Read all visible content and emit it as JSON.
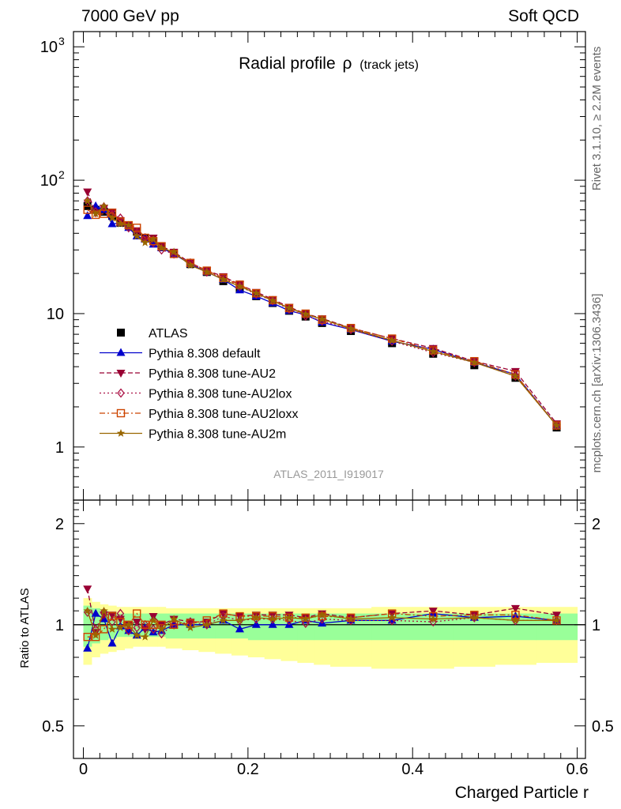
{
  "header": {
    "left": "7000 GeV pp",
    "right": "Soft QCD"
  },
  "side_labels": {
    "rivet": "Rivet 3.1.10, ≥ 2.2M events",
    "mcplots": "mcplots.cern.ch [arXiv:1306.3436]"
  },
  "analysis_id": "ATLAS_2011_I919017",
  "colors": {
    "atlas": "#000000",
    "default": "#0000cc",
    "au2": "#990033",
    "au2lox": "#aa1144",
    "au2loxx": "#cc4400",
    "au2m": "#996600",
    "band_inner": "#99ff99",
    "band_outer": "#ffff99"
  },
  "chart_data": [
    {
      "type": "line",
      "title": "Radial profile",
      "title_symbol": "ρ",
      "title_suffix": "(track jets)",
      "xlabel": "Charged Particle r",
      "ylabel": "",
      "xlim": [
        -0.012,
        0.61
      ],
      "ylim": [
        0.4,
        1300
      ],
      "yscale": "log",
      "yticks": [
        1,
        10
      ],
      "ytick_labels": [
        "1",
        "10"
      ],
      "ytick_pow": [
        {
          "base": "10",
          "exp": "2",
          "value": 100
        },
        {
          "base": "10",
          "exp": "3",
          "value": 1000
        }
      ],
      "legend_position": "middle-left",
      "x": [
        0.005,
        0.015,
        0.025,
        0.035,
        0.045,
        0.055,
        0.065,
        0.075,
        0.085,
        0.095,
        0.11,
        0.13,
        0.15,
        0.17,
        0.19,
        0.21,
        0.23,
        0.25,
        0.27,
        0.29,
        0.325,
        0.375,
        0.425,
        0.475,
        0.525,
        0.575
      ],
      "series": [
        {
          "name": "ATLAS",
          "key": "atlas",
          "marker": "square",
          "values": [
            64,
            60,
            58,
            54,
            48,
            46,
            41,
            37,
            35,
            32,
            28,
            23.5,
            20.5,
            17.5,
            15.5,
            13.5,
            12,
            10.5,
            9.5,
            8.5,
            7.4,
            6.0,
            5.0,
            4.1,
            3.3,
            1.4
          ]
        },
        {
          "name": "Pythia 8.308 default",
          "key": "default",
          "marker": "triangle-up",
          "line": "solid",
          "values": [
            54,
            64,
            60,
            47,
            48,
            44,
            38,
            36,
            33,
            31,
            28,
            23.5,
            20.5,
            18,
            15,
            13.5,
            12,
            10.5,
            9.8,
            8.6,
            7.6,
            6.2,
            5.4,
            4.3,
            3.5,
            1.45
          ]
        },
        {
          "name": "Pythia 8.308 tune-AU2",
          "key": "au2",
          "marker": "triangle-down",
          "line": "dashed",
          "values": [
            82,
            57,
            62,
            58,
            50,
            46,
            42,
            36,
            37,
            32,
            29,
            24,
            21,
            19,
            16.5,
            14.5,
            12.8,
            11.2,
            10,
            9.2,
            7.8,
            6.5,
            5.5,
            4.4,
            3.7,
            1.5
          ]
        },
        {
          "name": "Pythia 8.308 tune-AU2lox",
          "key": "au2lox",
          "marker": "diamond-open",
          "line": "dotted",
          "values": [
            70,
            58,
            63,
            55,
            52,
            44,
            40,
            37,
            34,
            30,
            28,
            24,
            20.5,
            18.5,
            16,
            14,
            12.5,
            10.8,
            9.6,
            8.8,
            7.6,
            6.2,
            5.1,
            4.3,
            3.4,
            1.45
          ]
        },
        {
          "name": "Pythia 8.308 tune-AU2loxx",
          "key": "au2loxx",
          "marker": "square-open",
          "line": "dashdot",
          "values": [
            60,
            55,
            56,
            57,
            49,
            46,
            44,
            37,
            35,
            32,
            28,
            24,
            21,
            18.5,
            16.5,
            14.2,
            12.6,
            11,
            10,
            9,
            7.8,
            6.5,
            5.3,
            4.4,
            3.5,
            1.45
          ]
        },
        {
          "name": "Pythia 8.308 tune-AU2m",
          "key": "au2m",
          "marker": "star",
          "line": "solid",
          "values": [
            70,
            56,
            64,
            52,
            47,
            46,
            38,
            34,
            36,
            31,
            29,
            23,
            20.5,
            18,
            16,
            14.2,
            12.5,
            11,
            9.9,
            9.1,
            7.7,
            6.3,
            5.2,
            4.3,
            3.4,
            1.45
          ]
        }
      ]
    },
    {
      "type": "line",
      "title": "",
      "xlabel": "Charged Particle r",
      "ylabel": "Ratio to ATLAS",
      "xlim": [
        -0.012,
        0.61
      ],
      "ylim": [
        0.4,
        2.35
      ],
      "yscale": "log",
      "yticks": [
        0.5,
        1,
        2
      ],
      "ytick_labels": [
        "0.5",
        "1",
        "2"
      ],
      "xticks": [
        0,
        0.2,
        0.4,
        0.6
      ],
      "xtick_labels": [
        "0",
        "0.2",
        "0.4",
        "0.6"
      ],
      "x": [
        0.005,
        0.015,
        0.025,
        0.035,
        0.045,
        0.055,
        0.065,
        0.075,
        0.085,
        0.095,
        0.11,
        0.13,
        0.15,
        0.17,
        0.19,
        0.21,
        0.23,
        0.25,
        0.27,
        0.29,
        0.325,
        0.375,
        0.425,
        0.475,
        0.525,
        0.575
      ],
      "x_edges": [
        0,
        0.01,
        0.02,
        0.03,
        0.04,
        0.05,
        0.06,
        0.07,
        0.08,
        0.09,
        0.1,
        0.12,
        0.14,
        0.16,
        0.18,
        0.2,
        0.22,
        0.24,
        0.26,
        0.28,
        0.3,
        0.35,
        0.4,
        0.45,
        0.5,
        0.55,
        0.6
      ],
      "band_inner": {
        "low": [
          0.86,
          0.88,
          0.9,
          0.91,
          0.92,
          0.92,
          0.92,
          0.92,
          0.92,
          0.92,
          0.91,
          0.91,
          0.91,
          0.91,
          0.91,
          0.9,
          0.9,
          0.9,
          0.9,
          0.9,
          0.9,
          0.9,
          0.9,
          0.9,
          0.9,
          0.9
        ],
        "high": [
          1.14,
          1.12,
          1.1,
          1.09,
          1.08,
          1.08,
          1.08,
          1.08,
          1.08,
          1.08,
          1.08,
          1.08,
          1.08,
          1.08,
          1.08,
          1.08,
          1.08,
          1.08,
          1.08,
          1.08,
          1.08,
          1.08,
          1.08,
          1.08,
          1.08,
          1.08
        ]
      },
      "band_outer": {
        "low": [
          0.76,
          0.8,
          0.82,
          0.83,
          0.84,
          0.85,
          0.86,
          0.86,
          0.86,
          0.86,
          0.85,
          0.84,
          0.83,
          0.82,
          0.81,
          0.8,
          0.79,
          0.78,
          0.77,
          0.76,
          0.75,
          0.74,
          0.74,
          0.75,
          0.76,
          0.77
        ],
        "high": [
          1.2,
          1.17,
          1.15,
          1.14,
          1.13,
          1.13,
          1.13,
          1.13,
          1.13,
          1.13,
          1.12,
          1.12,
          1.12,
          1.12,
          1.12,
          1.12,
          1.12,
          1.12,
          1.12,
          1.12,
          1.12,
          1.13,
          1.13,
          1.13,
          1.13,
          1.13
        ]
      },
      "series": [
        {
          "name": "Pythia 8.308 default",
          "key": "default",
          "marker": "triangle-up",
          "line": "solid",
          "values": [
            0.85,
            1.08,
            1.04,
            0.88,
            0.99,
            0.96,
            0.93,
            0.98,
            0.95,
            0.96,
            1.0,
            1.0,
            1.0,
            1.03,
            0.97,
            1.0,
            1.0,
            1.0,
            1.03,
            1.01,
            1.03,
            1.03,
            1.08,
            1.05,
            1.06,
            1.03
          ]
        },
        {
          "name": "Pythia 8.308 tune-AU2",
          "key": "au2",
          "marker": "triangle-down",
          "line": "dashed",
          "values": [
            1.28,
            0.95,
            1.07,
            1.07,
            1.04,
            1.0,
            1.02,
            0.97,
            1.06,
            1.0,
            1.04,
            1.02,
            1.02,
            1.08,
            1.06,
            1.07,
            1.07,
            1.07,
            1.05,
            1.08,
            1.05,
            1.08,
            1.1,
            1.07,
            1.12,
            1.07
          ]
        },
        {
          "name": "Pythia 8.308 tune-AU2lox",
          "key": "au2lox",
          "marker": "diamond-open",
          "line": "dotted",
          "values": [
            1.09,
            0.97,
            1.09,
            1.02,
            1.08,
            0.96,
            0.98,
            1.0,
            0.97,
            0.94,
            1.0,
            1.02,
            1.0,
            1.06,
            1.03,
            1.04,
            1.04,
            1.03,
            1.01,
            1.04,
            1.03,
            1.03,
            1.02,
            1.05,
            1.03,
            1.03
          ]
        },
        {
          "name": "Pythia 8.308 tune-AU2loxx",
          "key": "au2loxx",
          "marker": "square-open",
          "line": "dashdot",
          "values": [
            0.92,
            0.92,
            0.97,
            1.06,
            1.02,
            1.0,
            1.08,
            1.0,
            1.0,
            1.0,
            1.0,
            1.01,
            1.03,
            1.08,
            1.06,
            1.06,
            1.06,
            1.05,
            1.05,
            1.06,
            1.05,
            1.08,
            1.06,
            1.07,
            1.07,
            1.03
          ]
        },
        {
          "name": "Pythia 8.308 tune-AU2m",
          "key": "au2m",
          "marker": "star",
          "line": "solid",
          "values": [
            1.1,
            0.93,
            1.1,
            0.97,
            0.98,
            1.0,
            0.93,
            0.92,
            1.03,
            0.97,
            1.04,
            0.98,
            1.0,
            1.03,
            1.03,
            1.05,
            1.04,
            1.05,
            1.04,
            1.07,
            1.04,
            1.05,
            1.04,
            1.05,
            1.03,
            1.03
          ]
        }
      ]
    }
  ]
}
